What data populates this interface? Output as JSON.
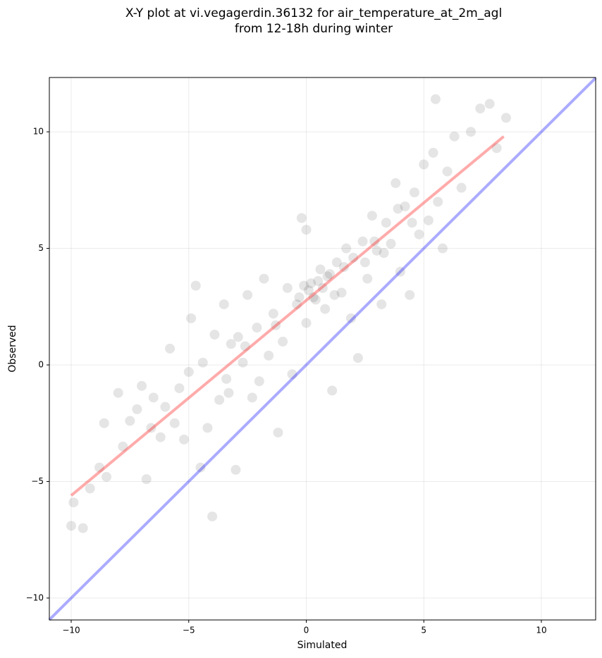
{
  "chart_data": {
    "type": "scatter",
    "title": [
      "X-Y plot at vi.vegagerdin.36132 for air_temperature_at_2m_agl",
      "from 12-18h during winter"
    ],
    "x_label": "Simulated",
    "y_label": "Observed",
    "xlim": [
      -10.93,
      12.31
    ],
    "ylim": [
      -10.94,
      12.33
    ],
    "xticks": [
      {
        "value": -10,
        "label": "−10"
      },
      {
        "value": -5,
        "label": "−5"
      },
      0,
      5,
      10
    ],
    "yticks": [
      {
        "value": -10,
        "label": "−10"
      },
      {
        "value": -5,
        "label": "−5"
      },
      0,
      5,
      10
    ],
    "grid": true,
    "color": "#000000",
    "x": [
      -10,
      -9.9,
      -9.5,
      -9.2,
      -8.8,
      -8.6,
      -8.5,
      -8.0,
      -7.8,
      -7.5,
      -7.2,
      -7.0,
      -6.8,
      -6.6,
      -6.5,
      -6.2,
      -6.0,
      -5.8,
      -5.6,
      -5.4,
      -5.2,
      -5.0,
      -4.9,
      -4.7,
      -4.5,
      -4.4,
      -4.2,
      -4.0,
      -3.9,
      -3.7,
      -3.5,
      -3.4,
      -3.2,
      -3.0,
      -2.9,
      -2.7,
      -2.5,
      -2.3,
      -2.1,
      -2.0,
      -1.8,
      -1.6,
      -1.4,
      -1.2,
      -1.0,
      -0.8,
      -0.6,
      -0.4,
      -0.2,
      0,
      0.1,
      0.3,
      0.5,
      0.6,
      0.8,
      1.0,
      1.1,
      1.3,
      1.5,
      1.7,
      1.9,
      2.0,
      2.2,
      2.4,
      2.6,
      2.8,
      3.0,
      3.2,
      3.4,
      3.6,
      3.8,
      4.0,
      4.2,
      4.4,
      4.6,
      4.8,
      5.0,
      5.2,
      5.4,
      5.6,
      5.8,
      6.0,
      6.3,
      6.6,
      7.0,
      7.4,
      7.8,
      8.1,
      8.5,
      0.2,
      0.4,
      0.7,
      0.9,
      1.2,
      -0.3,
      -0.1,
      2.5,
      3.3,
      1.6,
      2.9,
      -1.3,
      -2.6,
      4.5,
      3.9,
      5.5,
      0.0,
      -3.3
    ],
    "y": [
      -6.9,
      -5.9,
      -7.0,
      -5.3,
      -4.4,
      -2.5,
      -4.8,
      -1.2,
      -3.5,
      -2.4,
      -1.9,
      -0.9,
      -4.9,
      -2.7,
      -1.4,
      -3.1,
      -1.8,
      0.7,
      -2.5,
      -1.0,
      -3.2,
      -0.3,
      2.0,
      3.4,
      -4.4,
      0.1,
      -2.7,
      -6.5,
      1.3,
      -1.5,
      2.6,
      -0.6,
      0.9,
      -4.5,
      1.2,
      0.1,
      3.0,
      -1.4,
      1.6,
      -0.7,
      3.7,
      0.4,
      2.2,
      -2.9,
      1.0,
      3.3,
      -0.4,
      2.6,
      6.3,
      1.8,
      3.2,
      2.9,
      3.6,
      4.1,
      2.4,
      3.9,
      -1.1,
      4.4,
      3.1,
      5.0,
      2.0,
      4.6,
      0.3,
      5.3,
      3.7,
      6.4,
      4.9,
      2.6,
      6.1,
      5.2,
      7.8,
      4.0,
      6.8,
      3.0,
      7.4,
      5.6,
      8.6,
      6.2,
      9.1,
      7.0,
      5.0,
      8.3,
      9.8,
      7.6,
      10.0,
      11.0,
      11.2,
      9.3,
      10.6,
      3.5,
      2.8,
      3.3,
      3.8,
      3.0,
      2.9,
      3.4,
      4.4,
      4.8,
      4.2,
      5.3,
      1.7,
      0.8,
      6.1,
      6.7,
      11.4,
      5.8,
      -1.2
    ],
    "lines": [
      {
        "color": "#ff0000",
        "x": [
          -10,
          8.4
        ],
        "y": [
          -5.6,
          9.8
        ]
      },
      {
        "color": "#0000ff",
        "x": [
          -10.93,
          12.31
        ],
        "y": [
          -10.93,
          12.31
        ]
      }
    ]
  }
}
